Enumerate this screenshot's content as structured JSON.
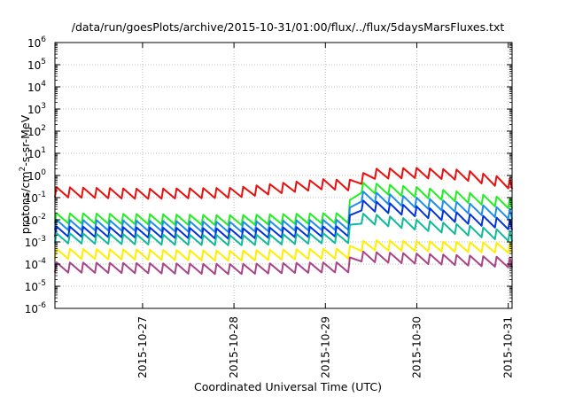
{
  "chart_data": {
    "type": "line",
    "title": "/data/run/goesPlots/archive/2015-10-31/01:00/flux/../flux/5daysMarsFluxes.txt",
    "xlabel": "Coordinated Universal Time (UTC)",
    "ylabel": {
      "prefix": "protons/cm",
      "sup": "2",
      "suffix": "-s-sr-MeV"
    },
    "yscale": "log",
    "ylim": [
      1e-06,
      1000000.0
    ],
    "xlim": [
      "2015-10-26 01:00",
      "2015-10-31 01:00"
    ],
    "yticks": [
      {
        "base": "10",
        "exp": "-6"
      },
      {
        "base": "10",
        "exp": "-5"
      },
      {
        "base": "10",
        "exp": "-4"
      },
      {
        "base": "10",
        "exp": "-3"
      },
      {
        "base": "10",
        "exp": "-2"
      },
      {
        "base": "10",
        "exp": "-1"
      },
      {
        "base": "10",
        "exp": "0"
      },
      {
        "base": "10",
        "exp": "1"
      },
      {
        "base": "10",
        "exp": "2"
      },
      {
        "base": "10",
        "exp": "3"
      },
      {
        "base": "10",
        "exp": "4"
      },
      {
        "base": "10",
        "exp": "5"
      },
      {
        "base": "10",
        "exp": "6"
      }
    ],
    "xticks": [
      "2015-10-27",
      "2015-10-28",
      "2015-10-29",
      "2015-10-30",
      "2015-10-31"
    ],
    "grid": true,
    "legend": "none",
    "note": "Each series is a sawtooth (fast rise, slow decay, roughly every 3.5 h); the upper envelope of each series is listed below. Channels above the red one jump upward near 2015-10-29 06:00.",
    "x": [
      "2015-10-26 01:00",
      "2015-10-27 00:00",
      "2015-10-28 00:00",
      "2015-10-28 12:00",
      "2015-10-29 00:00",
      "2015-10-29 06:00",
      "2015-10-29 07:00",
      "2015-10-29 12:00",
      "2015-10-30 00:00",
      "2015-10-30 12:00",
      "2015-10-31 01:00"
    ],
    "series": [
      {
        "color": "#e8110f",
        "values": [
          0.3,
          0.25,
          0.28,
          0.45,
          0.7,
          0.6,
          0.7,
          2.0,
          2.2,
          1.8,
          0.7
        ]
      },
      {
        "color": "#22ee22",
        "values": [
          0.02,
          0.018,
          0.016,
          0.018,
          0.02,
          0.02,
          0.5,
          0.45,
          0.3,
          0.18,
          0.09
        ]
      },
      {
        "color": "#1e8ee8",
        "values": [
          0.01,
          0.009,
          0.008,
          0.009,
          0.01,
          0.01,
          0.2,
          0.18,
          0.1,
          0.06,
          0.03
        ]
      },
      {
        "color": "#0033dd",
        "values": [
          0.005,
          0.0045,
          0.004,
          0.0045,
          0.005,
          0.005,
          0.08,
          0.07,
          0.04,
          0.02,
          0.01
        ]
      },
      {
        "color": "#11bb99",
        "values": [
          0.0025,
          0.0022,
          0.002,
          0.0022,
          0.0025,
          0.0025,
          0.02,
          0.018,
          0.01,
          0.006,
          0.003
        ]
      },
      {
        "color": "#ffee00",
        "values": [
          0.0005,
          0.00045,
          0.0004,
          0.00045,
          0.0005,
          0.0005,
          0.001,
          0.0012,
          0.0011,
          0.001,
          0.0009
        ]
      },
      {
        "color": "#aa4488",
        "values": [
          0.00012,
          0.00011,
          0.0001,
          0.00011,
          0.00012,
          0.00012,
          0.0004,
          0.00035,
          0.0003,
          0.00025,
          0.0002
        ]
      }
    ]
  }
}
